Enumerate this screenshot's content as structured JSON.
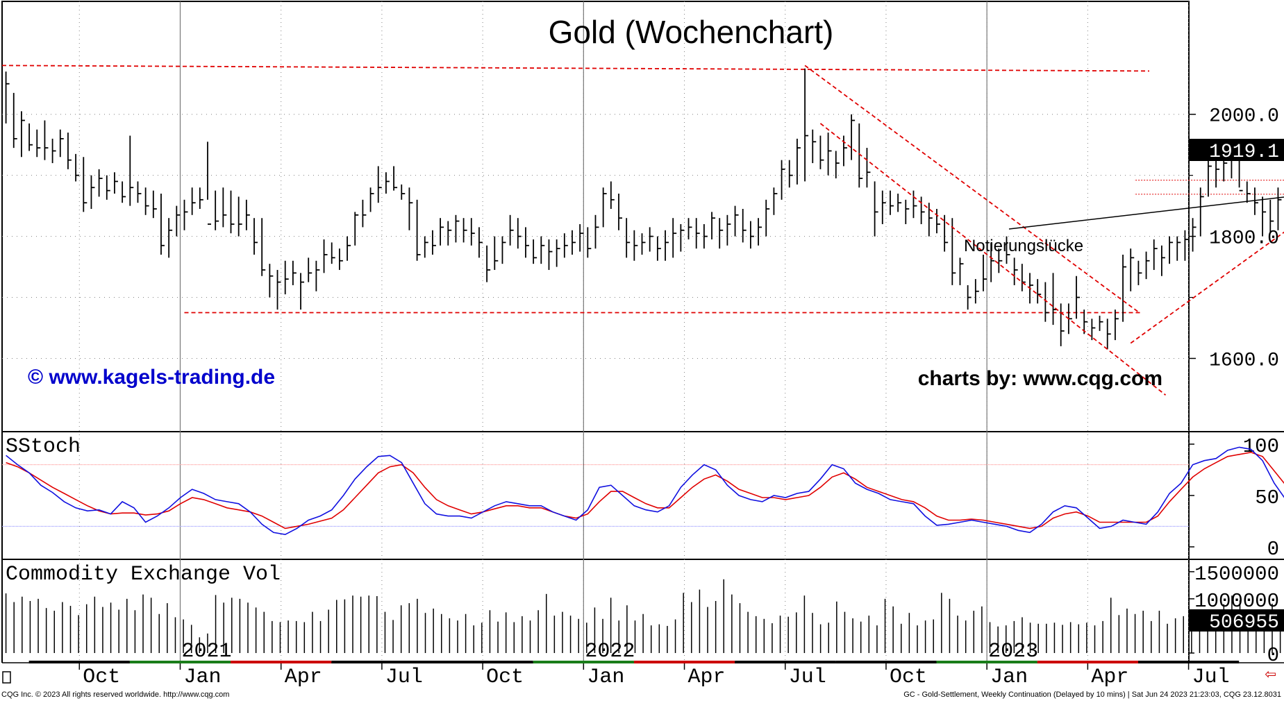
{
  "chart_data": {
    "type": "bar",
    "title": "Gold (Wochenchart)",
    "instrument": "GC - Gold-Settlement, Weekly Continuation (Delayed by 10 mins)",
    "price_axis": {
      "ticks": [
        1600.0,
        1800.0,
        2000.0
      ],
      "tick_labels": [
        "1600.0",
        "1800.0",
        "2000.0"
      ],
      "ylim": [
        1480,
        2185
      ]
    },
    "last_price": "1919.1",
    "x_axis": {
      "month_labels": [
        "Oct",
        "Jan",
        "Apr",
        "Jul",
        "Oct",
        "Jan",
        "Apr",
        "Jul",
        "Oct",
        "Jan",
        "Apr",
        "Jul"
      ],
      "year_labels": [
        "2021",
        "2022",
        "2023"
      ]
    },
    "ohlc_weekly": [
      [
        2070,
        1985,
        2050
      ],
      [
        2035,
        1945,
        1960
      ],
      [
        2005,
        1930,
        1990
      ],
      [
        1985,
        1940,
        1950
      ],
      [
        1975,
        1930,
        1945
      ],
      [
        1990,
        1925,
        1945
      ],
      [
        1960,
        1920,
        1940
      ],
      [
        1975,
        1930,
        1960
      ],
      [
        1970,
        1910,
        1925
      ],
      [
        1935,
        1890,
        1900
      ],
      [
        1930,
        1840,
        1855
      ],
      [
        1900,
        1845,
        1880
      ],
      [
        1910,
        1865,
        1895
      ],
      [
        1900,
        1860,
        1875
      ],
      [
        1905,
        1870,
        1890
      ],
      [
        1890,
        1855,
        1865
      ],
      [
        1965,
        1850,
        1880
      ],
      [
        1890,
        1855,
        1870
      ],
      [
        1880,
        1835,
        1850
      ],
      [
        1875,
        1830,
        1845
      ],
      [
        1870,
        1770,
        1785
      ],
      [
        1830,
        1765,
        1810
      ],
      [
        1850,
        1800,
        1835
      ],
      [
        1860,
        1810,
        1840
      ],
      [
        1880,
        1835,
        1855
      ],
      [
        1880,
        1845,
        1860
      ],
      [
        1955,
        1860,
        1820
      ],
      [
        1875,
        1810,
        1825
      ],
      [
        1880,
        1815,
        1835
      ],
      [
        1875,
        1805,
        1820
      ],
      [
        1865,
        1800,
        1820
      ],
      [
        1860,
        1810,
        1835
      ],
      [
        1830,
        1770,
        1790
      ],
      [
        1830,
        1735,
        1745
      ],
      [
        1755,
        1700,
        1735
      ],
      [
        1745,
        1680,
        1725
      ],
      [
        1760,
        1705,
        1730
      ],
      [
        1760,
        1720,
        1740
      ],
      [
        1740,
        1680,
        1725
      ],
      [
        1765,
        1725,
        1740
      ],
      [
        1760,
        1710,
        1745
      ],
      [
        1795,
        1740,
        1770
      ],
      [
        1790,
        1755,
        1765
      ],
      [
        1780,
        1745,
        1760
      ],
      [
        1800,
        1760,
        1785
      ],
      [
        1840,
        1785,
        1835
      ],
      [
        1860,
        1815,
        1835
      ],
      [
        1880,
        1840,
        1870
      ],
      [
        1915,
        1855,
        1880
      ],
      [
        1905,
        1870,
        1890
      ],
      [
        1915,
        1875,
        1880
      ],
      [
        1885,
        1860,
        1870
      ],
      [
        1880,
        1810,
        1855
      ],
      [
        1860,
        1760,
        1770
      ],
      [
        1800,
        1765,
        1790
      ],
      [
        1810,
        1770,
        1785
      ],
      [
        1830,
        1785,
        1815
      ],
      [
        1825,
        1785,
        1810
      ],
      [
        1835,
        1790,
        1825
      ],
      [
        1830,
        1790,
        1810
      ],
      [
        1830,
        1785,
        1805
      ],
      [
        1815,
        1765,
        1790
      ],
      [
        1785,
        1725,
        1745
      ],
      [
        1800,
        1745,
        1760
      ],
      [
        1800,
        1755,
        1790
      ],
      [
        1835,
        1785,
        1810
      ],
      [
        1830,
        1780,
        1800
      ],
      [
        1815,
        1765,
        1785
      ],
      [
        1795,
        1755,
        1765
      ],
      [
        1800,
        1755,
        1785
      ],
      [
        1795,
        1745,
        1775
      ],
      [
        1795,
        1750,
        1780
      ],
      [
        1805,
        1765,
        1785
      ],
      [
        1810,
        1770,
        1790
      ],
      [
        1820,
        1775,
        1805
      ],
      [
        1815,
        1765,
        1780
      ],
      [
        1835,
        1780,
        1815
      ],
      [
        1880,
        1815,
        1870
      ],
      [
        1890,
        1845,
        1860
      ],
      [
        1870,
        1810,
        1830
      ],
      [
        1830,
        1765,
        1790
      ],
      [
        1810,
        1760,
        1785
      ],
      [
        1805,
        1770,
        1790
      ],
      [
        1815,
        1775,
        1800
      ],
      [
        1800,
        1760,
        1780
      ],
      [
        1810,
        1760,
        1790
      ],
      [
        1830,
        1765,
        1805
      ],
      [
        1820,
        1775,
        1810
      ],
      [
        1830,
        1795,
        1815
      ],
      [
        1830,
        1780,
        1805
      ],
      [
        1820,
        1780,
        1800
      ],
      [
        1840,
        1795,
        1830
      ],
      [
        1830,
        1780,
        1810
      ],
      [
        1835,
        1785,
        1820
      ],
      [
        1850,
        1800,
        1835
      ],
      [
        1845,
        1790,
        1810
      ],
      [
        1825,
        1780,
        1800
      ],
      [
        1830,
        1785,
        1815
      ],
      [
        1860,
        1800,
        1845
      ],
      [
        1880,
        1835,
        1870
      ],
      [
        1925,
        1860,
        1910
      ],
      [
        1925,
        1880,
        1900
      ],
      [
        1960,
        1885,
        1945
      ],
      [
        2075,
        1890,
        1965
      ],
      [
        1975,
        1920,
        1955
      ],
      [
        1965,
        1910,
        1925
      ],
      [
        1970,
        1900,
        1940
      ],
      [
        1940,
        1895,
        1920
      ],
      [
        1965,
        1915,
        1945
      ],
      [
        2000,
        1925,
        1990
      ],
      [
        1985,
        1880,
        1895
      ],
      [
        1945,
        1880,
        1905
      ],
      [
        1890,
        1800,
        1840
      ],
      [
        1875,
        1820,
        1855
      ],
      [
        1875,
        1835,
        1850
      ],
      [
        1870,
        1840,
        1855
      ],
      [
        1860,
        1820,
        1845
      ],
      [
        1875,
        1830,
        1850
      ],
      [
        1865,
        1820,
        1840
      ],
      [
        1855,
        1800,
        1830
      ],
      [
        1845,
        1805,
        1820
      ],
      [
        1835,
        1775,
        1790
      ],
      [
        1830,
        1720,
        1740
      ],
      [
        1765,
        1720,
        1755
      ],
      [
        1720,
        1680,
        1700
      ],
      [
        1730,
        1690,
        1710
      ],
      [
        1770,
        1710,
        1730
      ],
      [
        1790,
        1725,
        1760
      ],
      [
        1780,
        1740,
        1760
      ],
      [
        1800,
        1755,
        1770
      ],
      [
        1765,
        1720,
        1745
      ],
      [
        1755,
        1710,
        1725
      ],
      [
        1740,
        1690,
        1720
      ],
      [
        1730,
        1690,
        1705
      ],
      [
        1725,
        1660,
        1675
      ],
      [
        1740,
        1655,
        1680
      ],
      [
        1690,
        1620,
        1645
      ],
      [
        1690,
        1640,
        1665
      ],
      [
        1735,
        1665,
        1700
      ],
      [
        1680,
        1640,
        1660
      ],
      [
        1665,
        1630,
        1650
      ],
      [
        1670,
        1645,
        1660
      ],
      [
        1665,
        1615,
        1640
      ],
      [
        1680,
        1630,
        1665
      ],
      [
        1770,
        1660,
        1750
      ],
      [
        1780,
        1710,
        1765
      ],
      [
        1760,
        1720,
        1740
      ],
      [
        1775,
        1730,
        1760
      ],
      [
        1795,
        1745,
        1780
      ],
      [
        1785,
        1735,
        1765
      ],
      [
        1800,
        1755,
        1790
      ],
      [
        1800,
        1760,
        1790
      ],
      [
        1810,
        1760,
        1795
      ],
      [
        1830,
        1775,
        1815
      ],
      [
        1880,
        1800,
        1865
      ],
      [
        1925,
        1865,
        1915
      ],
      [
        1930,
        1880,
        1910
      ],
      [
        1925,
        1890,
        1920
      ],
      [
        1945,
        1895,
        1930
      ],
      [
        1950,
        1880,
        1875
      ],
      [
        1890,
        1855,
        1870
      ],
      [
        1880,
        1835,
        1855
      ],
      [
        1865,
        1800,
        1840
      ],
      [
        1860,
        1805,
        1825
      ],
      [
        1880,
        1810,
        1860
      ],
      [
        1980,
        1870,
        1970
      ],
      [
        1990,
        1940,
        1980
      ],
      [
        2010,
        1950,
        1990
      ],
      [
        2000,
        1950,
        1975
      ],
      [
        2035,
        1975,
        2010
      ],
      [
        2050,
        1980,
        2015
      ],
      [
        2025,
        1960,
        1980
      ],
      [
        2030,
        1970,
        2005
      ],
      [
        2040,
        1990,
        2010
      ],
      [
        2065,
        1985,
        2030
      ],
      [
        2045,
        2005,
        2025
      ],
      [
        2040,
        1970,
        1995
      ],
      [
        1985,
        1935,
        1955
      ],
      [
        1980,
        1940,
        1965
      ],
      [
        1975,
        1935,
        1950
      ],
      [
        1975,
        1940,
        1960
      ],
      [
        1965,
        1925,
        1945
      ],
      [
        1945,
        1905,
        1920
      ],
      [
        1935,
        1910,
        1925
      ]
    ],
    "horizontal_levels": [
      2080,
      1675
    ],
    "channel_lines": {
      "down_upper": [
        [
          0,
          2080
        ],
        [
          47,
          1676
        ]
      ],
      "down_lower": [
        [
          3,
          1985
        ],
        [
          45,
          1540
        ]
      ],
      "up_support": [
        [
          46,
          1625
        ],
        [
          96,
          2080
        ]
      ],
      "resistance_2023": [
        [
          96,
          2080
        ],
        [
          100,
          2080
        ]
      ]
    },
    "gap_levels": [
      1892,
      1869
    ],
    "annotations": {
      "gap": "Notierungslücke"
    },
    "watermarks": {
      "left": "© www.kagels-trading.de",
      "right": "charts by: www.cqg.com"
    },
    "stochastic": {
      "label": "SStoch",
      "ticks": [
        0,
        50,
        100
      ],
      "tick_labels": [
        "0",
        "50",
        "100"
      ],
      "levels": [
        80,
        20
      ],
      "k": [
        89,
        80,
        72,
        60,
        53,
        44,
        38,
        35,
        36,
        32,
        44,
        38,
        24,
        30,
        38,
        48,
        56,
        52,
        46,
        44,
        42,
        34,
        22,
        14,
        12,
        18,
        26,
        30,
        36,
        50,
        66,
        78,
        88,
        89,
        82,
        62,
        42,
        32,
        30,
        30,
        28,
        34,
        40,
        44,
        42,
        40,
        40,
        34,
        30,
        26,
        36,
        58,
        60,
        50,
        40,
        36,
        34,
        40,
        58,
        70,
        80,
        75,
        60,
        50,
        46,
        44,
        50,
        48,
        52,
        54,
        66,
        80,
        76,
        62,
        56,
        52,
        46,
        44,
        42,
        30,
        21,
        22,
        24,
        26,
        24,
        22,
        20,
        16,
        14,
        22,
        34,
        40,
        38,
        28,
        18,
        20,
        26,
        24,
        22,
        34,
        52,
        62,
        80,
        84,
        86,
        94,
        97,
        95,
        84,
        62,
        46,
        44,
        60,
        68,
        76,
        80,
        80,
        76,
        74,
        62,
        46,
        38,
        30
      ],
      "d": [
        82,
        78,
        72,
        65,
        58,
        52,
        46,
        40,
        35,
        32,
        33,
        33,
        31,
        32,
        35,
        42,
        48,
        46,
        42,
        38,
        36,
        34,
        30,
        24,
        18,
        20,
        22,
        25,
        28,
        36,
        48,
        60,
        72,
        78,
        80,
        72,
        58,
        46,
        40,
        36,
        32,
        34,
        37,
        40,
        40,
        38,
        38,
        34,
        30,
        28,
        32,
        44,
        54,
        54,
        48,
        42,
        38,
        38,
        48,
        58,
        66,
        70,
        64,
        56,
        52,
        48,
        48,
        46,
        48,
        50,
        58,
        68,
        72,
        66,
        58,
        54,
        50,
        46,
        44,
        38,
        30,
        26,
        26,
        27,
        26,
        24,
        22,
        20,
        18,
        20,
        28,
        32,
        34,
        30,
        24,
        24,
        24,
        24,
        24,
        30,
        44,
        56,
        68,
        76,
        82,
        88,
        90,
        92,
        88,
        74,
        60,
        56,
        62,
        66,
        72,
        76,
        78,
        77,
        76,
        70,
        58,
        48,
        38
      ]
    },
    "volume": {
      "label": "Commodity Exchange Vol",
      "ticks": [
        0,
        1000000,
        1500000
      ],
      "tick_labels": [
        "0",
        "1000000",
        "1500000"
      ],
      "last_value": "506955",
      "values": [
        1100000,
        940000,
        1040000,
        960000,
        1000000,
        830000,
        780000,
        940000,
        870000,
        700000,
        900000,
        1040000,
        850000,
        930000,
        800000,
        1000000,
        790000,
        1080000,
        1020000,
        720000,
        920000,
        660000,
        620000,
        520000,
        290000,
        360000,
        1070000,
        930000,
        1020000,
        1000000,
        930000,
        840000,
        760000,
        590000,
        570000,
        600000,
        590000,
        570000,
        760000,
        590000,
        800000,
        980000,
        990000,
        1060000,
        1040000,
        1060000,
        1050000,
        760000,
        610000,
        880000,
        920000,
        1000000,
        740000,
        820000,
        720000,
        640000,
        600000,
        720000,
        510000,
        560000,
        790000,
        580000,
        750000,
        570000,
        680000,
        600000,
        790000,
        1090000,
        690000,
        760000,
        690000,
        630000,
        560000,
        840000,
        630000,
        1020000,
        600000,
        880000,
        600000,
        720000,
        510000,
        530000,
        500000,
        620000,
        1110000,
        940000,
        1170000,
        850000,
        960000,
        1360000,
        1080000,
        920000,
        760000,
        680000,
        630000,
        550000,
        690000,
        670000,
        750000,
        1060000,
        740000,
        530000,
        560000,
        950000,
        760000,
        640000,
        580000,
        690000,
        510000,
        1000000,
        860000,
        540000,
        740000,
        510000,
        600000,
        620000,
        1110000,
        1000000,
        690000,
        600000,
        780000,
        860000,
        570000,
        490000,
        510000,
        590000,
        660000,
        560000,
        540000,
        540000,
        560000,
        520000,
        570000,
        530000,
        560000,
        510000,
        590000,
        1020000,
        700000,
        820000,
        720000,
        780000,
        590000,
        780000,
        540000,
        640000,
        680000,
        520000,
        500000,
        450000,
        440000,
        900000,
        1060000,
        970000,
        740000,
        660000,
        730000,
        910000,
        560000,
        740000,
        1160000,
        880000,
        1230000,
        1060000,
        700000,
        720000,
        1000000,
        1130000,
        860000,
        720000,
        1070000,
        850000,
        900000,
        500000,
        520000,
        510000,
        506955
      ]
    },
    "footer": {
      "left": "CQG Inc. © 2023 All rights reserved worldwide. http://www.cqg.com",
      "right": "GC - Gold-Settlement, Weekly Continuation (Delayed by 10 mins) | Sat Jun 24 2023 21:23:03, CQG 23.12.8031"
    }
  }
}
